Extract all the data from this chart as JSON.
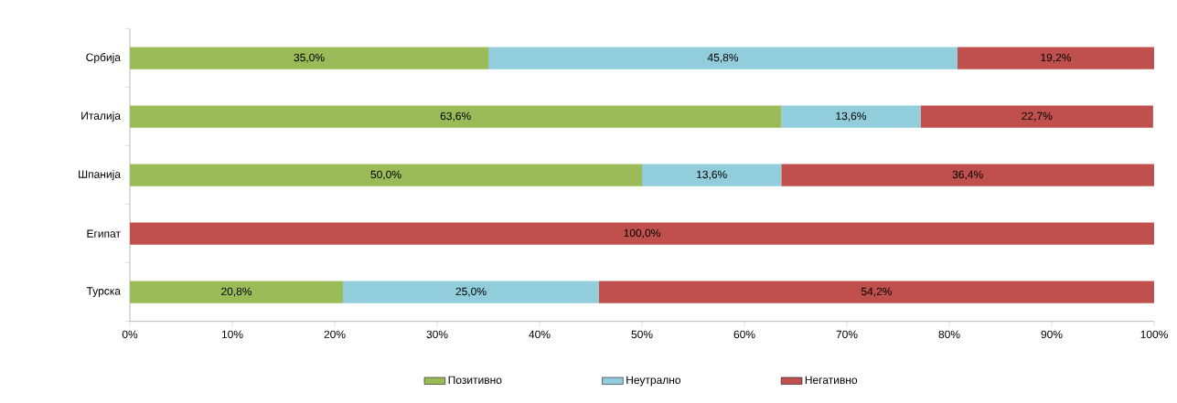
{
  "chart_data": {
    "type": "bar",
    "orientation": "horizontal",
    "stacked": true,
    "categories": [
      "Србија",
      "Италија",
      "Шпанија",
      "Египат",
      "Турска"
    ],
    "series": [
      {
        "name": "Позитивно",
        "color": "#9bbb59",
        "values": [
          35.0,
          63.6,
          50.0,
          0,
          20.8
        ],
        "value_labels": [
          "35,0%",
          "63,6%",
          "50,0%",
          null,
          "20,8%"
        ]
      },
      {
        "name": "Неутрално",
        "color": "#92cddc",
        "values": [
          45.8,
          13.6,
          13.6,
          0,
          25.0
        ],
        "value_labels": [
          "45,8%",
          "13,6%",
          "13,6%",
          null,
          "25,0%"
        ]
      },
      {
        "name": "Негативно",
        "color": "#c0504d",
        "values": [
          19.2,
          22.7,
          36.4,
          100.0,
          54.2
        ],
        "value_labels": [
          "19,2%",
          "22,7%",
          "36,4%",
          "100,0%",
          "54,2%"
        ]
      }
    ],
    "xlim": [
      0,
      100
    ],
    "xticks": [
      {
        "value": 0,
        "label": "0%"
      },
      {
        "value": 10,
        "label": "10%"
      },
      {
        "value": 20,
        "label": "20%"
      },
      {
        "value": 30,
        "label": "30%"
      },
      {
        "value": 40,
        "label": "40%"
      },
      {
        "value": 50,
        "label": "50%"
      },
      {
        "value": 60,
        "label": "60%"
      },
      {
        "value": 70,
        "label": "70%"
      },
      {
        "value": 80,
        "label": "80%"
      },
      {
        "value": 90,
        "label": "90%"
      },
      {
        "value": 100,
        "label": "100%"
      }
    ],
    "grid": false,
    "legend": "bottom"
  }
}
